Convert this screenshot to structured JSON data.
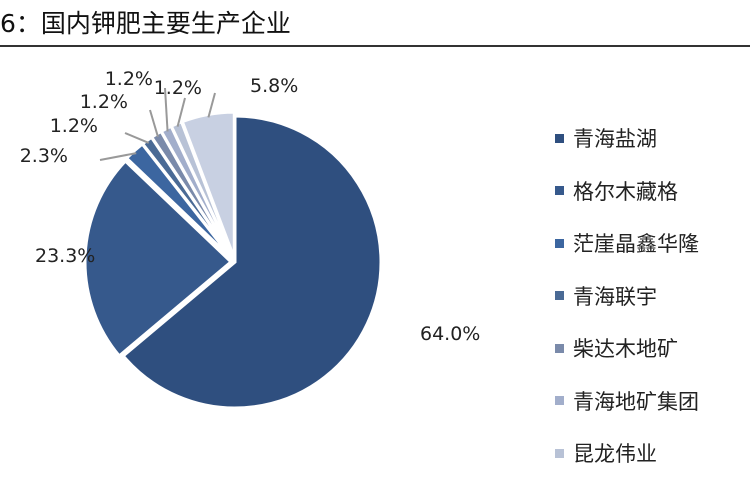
{
  "chart_data": {
    "type": "pie",
    "title": "6：国内钾肥主要生产企业",
    "categories": [
      "青海盐湖",
      "格尔木藏格",
      "茫崖晶鑫华隆",
      "青海联宇",
      "柴达木地矿",
      "青海地矿集团",
      "昆龙伟业",
      ""
    ],
    "values": [
      64.0,
      23.3,
      2.3,
      1.2,
      1.2,
      1.2,
      1.2,
      5.8
    ],
    "labels": [
      "64.0%",
      "23.3%",
      "2.3%",
      "1.2%",
      "1.2%",
      "1.2%",
      "1.2%",
      "5.8%"
    ],
    "colors": [
      "#2f4f7f",
      "#36598c",
      "#3c66a0",
      "#4a6a95",
      "#7a8aaa",
      "#a2aecb",
      "#b8c2d6",
      "#c8d0e2"
    ],
    "legend_position": "right",
    "start_angle": "12 o'clock, clockwise"
  }
}
